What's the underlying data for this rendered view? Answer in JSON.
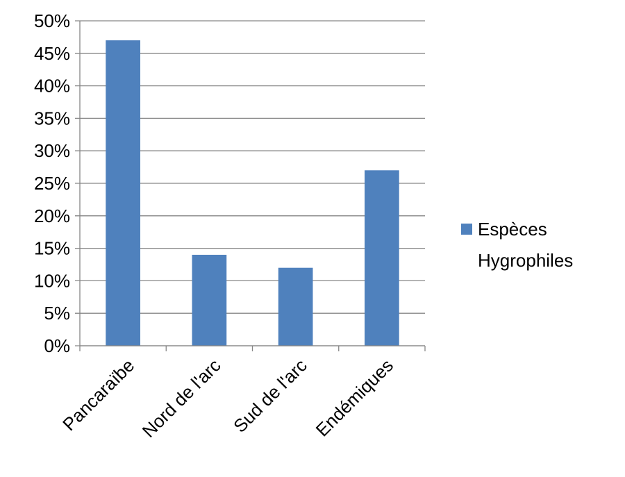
{
  "chart_data": {
    "type": "bar",
    "categories": [
      "Pancaraïbe",
      "Nord de l'arc",
      "Sud de l'arc",
      "Endémiques"
    ],
    "series": [
      {
        "name": "Espèces Hygrophiles",
        "values": [
          0.47,
          0.14,
          0.12,
          0.27
        ]
      }
    ],
    "ylim": [
      0,
      0.5
    ],
    "yticks": [
      "0%",
      "5%",
      "10%",
      "15%",
      "20%",
      "25%",
      "30%",
      "35%",
      "40%",
      "45%",
      "50%"
    ],
    "legend": {
      "position": "right",
      "lines": [
        "Espèces",
        "Hygrophiles"
      ]
    },
    "grid": true,
    "colors": {
      "bar": "#4f81bd",
      "grid": "#868686"
    }
  }
}
